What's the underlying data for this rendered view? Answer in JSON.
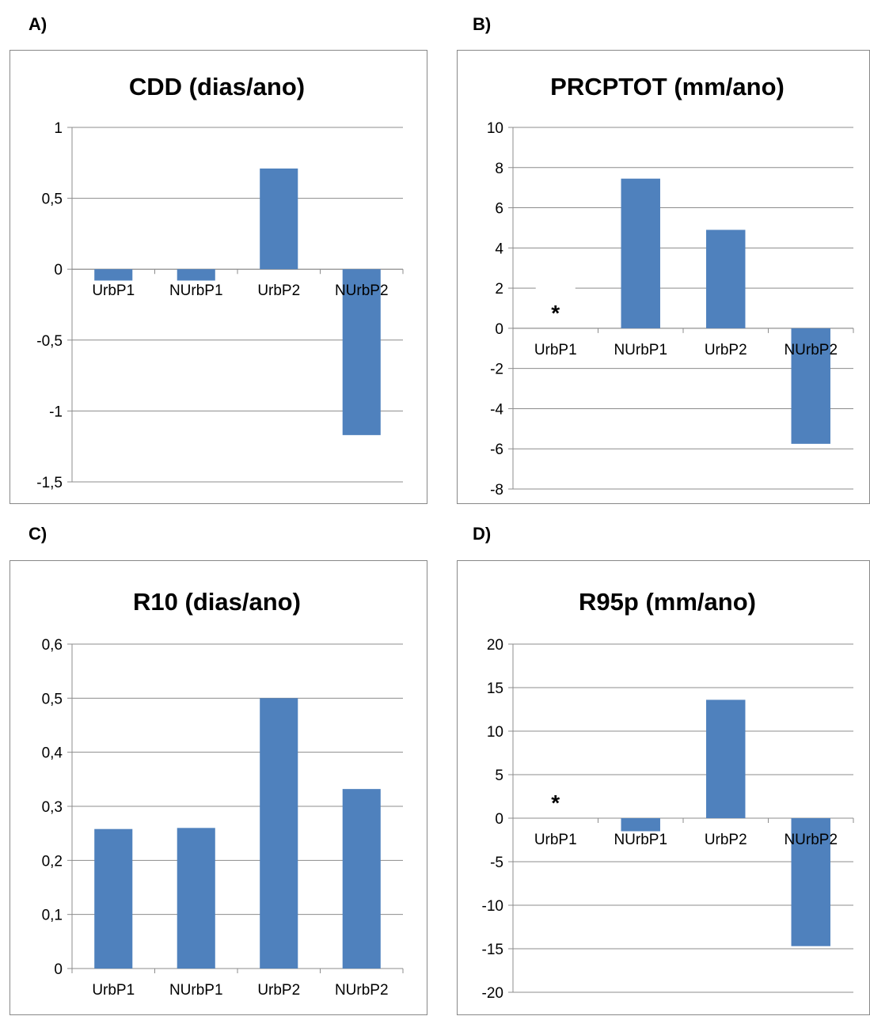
{
  "panels": [
    {
      "label": "A)"
    },
    {
      "label": "B)"
    },
    {
      "label": "C)"
    },
    {
      "label": "D)"
    }
  ],
  "chart_data": [
    {
      "type": "bar",
      "title": "CDD (dias/ano)",
      "categories": [
        "UrbP1",
        "NUrbP1",
        "UrbP2",
        "NUrbP2"
      ],
      "values": [
        -0.08,
        -0.08,
        0.71,
        -1.17
      ],
      "ylim": [
        -1.5,
        1
      ],
      "yticks": [
        -1.5,
        -1,
        -0.5,
        0,
        0.5,
        1
      ],
      "ytick_labels": [
        "-1,5",
        "-1",
        "-0,5",
        "0",
        "0,5",
        "1"
      ],
      "markers": [],
      "grid": true,
      "color": "#4f81bd"
    },
    {
      "type": "bar",
      "title": "PRCPTOT (mm/ano)",
      "categories": [
        "UrbP1",
        "NUrbP1",
        "UrbP2",
        "NUrbP2"
      ],
      "values": [
        0,
        7.45,
        4.9,
        -5.75
      ],
      "ylim": [
        -8,
        10
      ],
      "yticks": [
        -8,
        -6,
        -4,
        -2,
        0,
        2,
        4,
        6,
        8,
        10
      ],
      "ytick_labels": [
        "-8",
        "-6",
        "-4",
        "-2",
        "0",
        "2",
        "4",
        "6",
        "8",
        "10"
      ],
      "markers": [
        {
          "category": "UrbP1",
          "text": "*"
        }
      ],
      "grid": true,
      "color": "#4f81bd"
    },
    {
      "type": "bar",
      "title": "R10 (dias/ano)",
      "categories": [
        "UrbP1",
        "NUrbP1",
        "UrbP2",
        "NUrbP2"
      ],
      "values": [
        0.258,
        0.26,
        0.5,
        0.332
      ],
      "ylim": [
        0,
        0.6
      ],
      "yticks": [
        0,
        0.1,
        0.2,
        0.3,
        0.4,
        0.5,
        0.6
      ],
      "ytick_labels": [
        "0",
        "0,1",
        "0,2",
        "0,3",
        "0,4",
        "0,5",
        "0,6"
      ],
      "markers": [],
      "grid": true,
      "color": "#4f81bd"
    },
    {
      "type": "bar",
      "title": "R95p (mm/ano)",
      "categories": [
        "UrbP1",
        "NUrbP1",
        "UrbP2",
        "NUrbP2"
      ],
      "values": [
        0,
        -1.5,
        13.6,
        -14.7
      ],
      "ylim": [
        -20,
        20
      ],
      "yticks": [
        -20,
        -15,
        -10,
        -5,
        0,
        5,
        10,
        15,
        20
      ],
      "ytick_labels": [
        "-20",
        "-15",
        "-10",
        "-5",
        "0",
        "5",
        "10",
        "15",
        "20"
      ],
      "markers": [
        {
          "category": "UrbP1",
          "text": "*"
        }
      ],
      "grid": true,
      "color": "#4f81bd"
    }
  ]
}
